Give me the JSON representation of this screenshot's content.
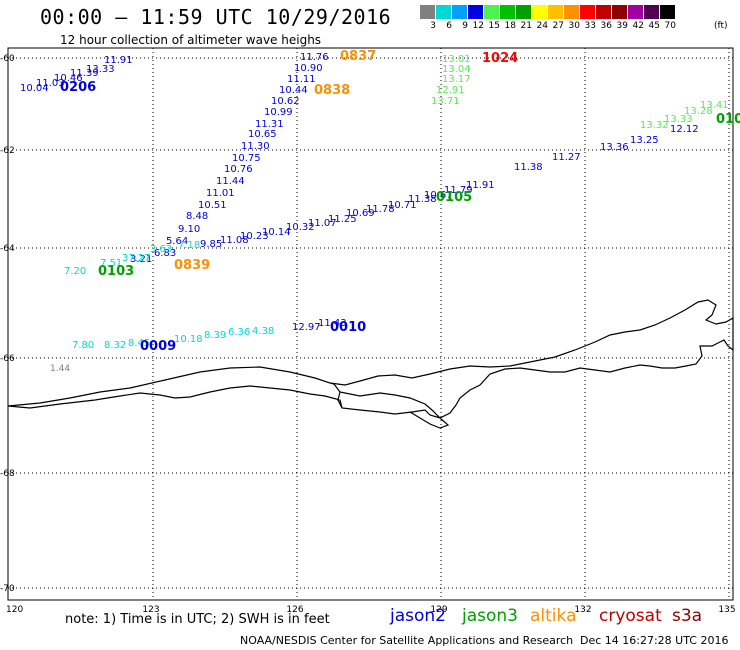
{
  "header": {
    "title": "00:00 – 11:59 UTC 10/29/2016",
    "subtitle": "12 hour collection of altimeter wave heighs"
  },
  "legend": {
    "colors": [
      "#808080",
      "#00d8d8",
      "#00a0ff",
      "#0000e0",
      "#50f050",
      "#00c000",
      "#00a000",
      "#ffff00",
      "#ffc000",
      "#ff9000",
      "#ff0000",
      "#c00000",
      "#900000",
      "#a000a0",
      "#500050",
      "#000000"
    ],
    "labels": [
      "3",
      "6",
      "9",
      "12",
      "15",
      "18",
      "21",
      "24",
      "27",
      "30",
      "33",
      "36",
      "39",
      "42",
      "45",
      "70"
    ],
    "unit": "(ft)"
  },
  "axes": {
    "lon_ticks": [
      "120",
      "123",
      "126",
      "129",
      "132",
      "135"
    ],
    "lat_ticks": [
      "-60",
      "-62",
      "-64",
      "-66",
      "-68",
      "-70"
    ]
  },
  "labels": {
    "label_144": "1.44",
    "tracks": [
      {
        "id": "t0206",
        "color": "#0000e0",
        "time": "0206",
        "values": [
          "11.91",
          "13.33",
          "11.39",
          "10.46",
          "11.03",
          "10.04"
        ]
      },
      {
        "id": "t0837",
        "color": "#0000e0",
        "time_color": "#ff9000",
        "time": "0837",
        "values": [
          "11.76",
          "10.90",
          "11.11",
          "10.44",
          "10.62",
          "10.99",
          "11.31",
          "10.65",
          "11.30",
          "10.75",
          "10.76",
          "11.44",
          "11.01",
          "10.51",
          "8.48",
          "9.10",
          "5.64",
          "6.83",
          "3.21"
        ]
      },
      {
        "id": "t0838",
        "color": "#ff9000",
        "time": "0838",
        "values": []
      },
      {
        "id": "t1024",
        "color": "#50f050",
        "time_color": "#ff0000",
        "time": "1024",
        "values": [
          "13.01",
          "13.04",
          "13.17",
          "12.91",
          "13.71"
        ]
      },
      {
        "id": "t0105",
        "color": "#0000e0",
        "time_color": "#00a000",
        "time": "0105",
        "values": [
          "9.85",
          "11.08",
          "10.23",
          "10.14",
          "10.32",
          "11.07",
          "11.25",
          "10.69",
          "11.78",
          "10.71",
          "11.38",
          "10.67",
          "11.79",
          "11.91",
          "11.38",
          "11.27",
          "13.36",
          "13.25",
          "12.12"
        ]
      },
      {
        "id": "t0103",
        "color": "#00d8d8",
        "time_color": "#00a000",
        "time": "0103",
        "values": [
          "7.20",
          "7.51",
          "37.27",
          "3.63",
          "7.18"
        ]
      },
      {
        "id": "t0839",
        "color": "#ff9000",
        "time": "0839",
        "values": []
      },
      {
        "id": "t0009",
        "color": "#00d8d8",
        "time_color": "#0000e0",
        "time": "0009",
        "values": [
          "7.80",
          "8.32",
          "8.45",
          "10.18",
          "8.39",
          "6.36",
          "4.38"
        ]
      },
      {
        "id": "t0010",
        "color": "#0000e0",
        "time": "0010",
        "values": [
          "12.97",
          "11.43"
        ]
      },
      {
        "id": "t010",
        "color": "#50f050",
        "time_color": "#00a000",
        "time": "010",
        "values": [
          "13.32",
          "13.33",
          "13.28",
          "13.41"
        ]
      }
    ]
  },
  "footer": {
    "note": "note: 1) Time is in UTC; 2) SWH is in feet",
    "satellites": [
      {
        "name": "jason2",
        "color": "#0000e0"
      },
      {
        "name": "jason3",
        "color": "#00a000"
      },
      {
        "name": "altika",
        "color": "#ff9000"
      },
      {
        "name": "cryosat",
        "color": "#c00000"
      },
      {
        "name": "s3a",
        "color": "#900000"
      }
    ],
    "credit": "NOAA/NESDIS Center for Satellite Applications and Research",
    "timestamp": "Dec 14 16:27:28 UTC 2016"
  }
}
